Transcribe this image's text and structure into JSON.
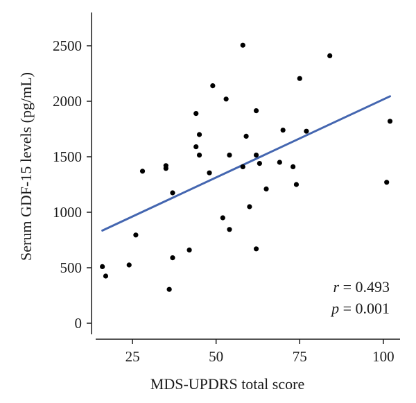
{
  "chart_data": {
    "type": "scatter",
    "title": "",
    "xlabel": "MDS-UPDRS total score",
    "ylabel": "Serum GDF-15 levels (pg/mL)",
    "xlim": [
      14,
      105
    ],
    "ylim": [
      -100,
      2800
    ],
    "x_ticks": [
      25,
      50,
      75,
      100
    ],
    "x_tick_labels": [
      "25",
      "50",
      "75",
      "100"
    ],
    "y_ticks": [
      0,
      500,
      1000,
      1500,
      2000,
      2500
    ],
    "y_tick_labels": [
      "0",
      "500",
      "1000",
      "1500",
      "2000",
      "2500"
    ],
    "grid": false,
    "points": [
      {
        "x": 16,
        "y": 510
      },
      {
        "x": 17,
        "y": 425
      },
      {
        "x": 24,
        "y": 525
      },
      {
        "x": 26,
        "y": 795
      },
      {
        "x": 28,
        "y": 1370
      },
      {
        "x": 35,
        "y": 1420
      },
      {
        "x": 35,
        "y": 1395
      },
      {
        "x": 36,
        "y": 305
      },
      {
        "x": 37,
        "y": 590
      },
      {
        "x": 37,
        "y": 1175
      },
      {
        "x": 42,
        "y": 660
      },
      {
        "x": 44,
        "y": 1890
      },
      {
        "x": 44,
        "y": 1590
      },
      {
        "x": 45,
        "y": 1700
      },
      {
        "x": 45,
        "y": 1515
      },
      {
        "x": 48,
        "y": 1355
      },
      {
        "x": 49,
        "y": 2140
      },
      {
        "x": 52,
        "y": 950
      },
      {
        "x": 53,
        "y": 2020
      },
      {
        "x": 54,
        "y": 1515
      },
      {
        "x": 54,
        "y": 845
      },
      {
        "x": 58,
        "y": 2505
      },
      {
        "x": 58,
        "y": 1410
      },
      {
        "x": 59,
        "y": 1685
      },
      {
        "x": 60,
        "y": 1050
      },
      {
        "x": 62,
        "y": 1915
      },
      {
        "x": 62,
        "y": 1515
      },
      {
        "x": 62,
        "y": 670
      },
      {
        "x": 63,
        "y": 1440
      },
      {
        "x": 65,
        "y": 1210
      },
      {
        "x": 69,
        "y": 1450
      },
      {
        "x": 70,
        "y": 1740
      },
      {
        "x": 73,
        "y": 1410
      },
      {
        "x": 74,
        "y": 1250
      },
      {
        "x": 75,
        "y": 2205
      },
      {
        "x": 77,
        "y": 1730
      },
      {
        "x": 84,
        "y": 2410
      },
      {
        "x": 101,
        "y": 1270
      },
      {
        "x": 102,
        "y": 1820
      }
    ],
    "fit_line": {
      "x": [
        16,
        102
      ],
      "y": [
        835,
        2045
      ],
      "color": "#4466b0"
    },
    "marker_color": "#000000",
    "annotations": {
      "r_symbol": "r",
      "r_value": " = 0.493",
      "p_symbol": "p",
      "p_value": " = 0.001",
      "placement": "bottom-right"
    }
  }
}
